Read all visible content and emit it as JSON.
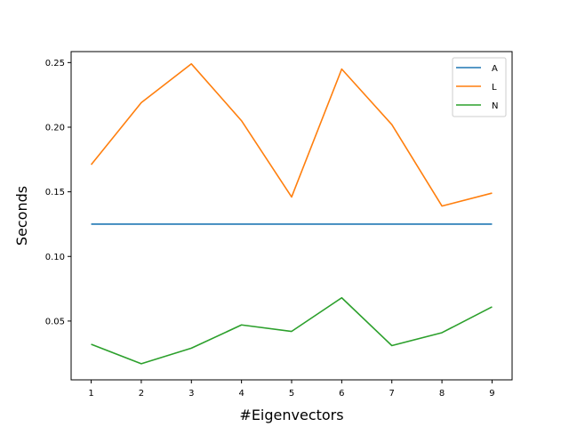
{
  "chart_data": {
    "type": "line",
    "title": "",
    "xlabel": "#Eigenvectors",
    "ylabel": "Seconds",
    "x": [
      1,
      2,
      3,
      4,
      5,
      6,
      7,
      8,
      9
    ],
    "xlim": [
      0.6,
      9.4
    ],
    "ylim": [
      0.0045,
      0.2585
    ],
    "xticks": [
      "1",
      "2",
      "3",
      "4",
      "5",
      "6",
      "7",
      "8",
      "9"
    ],
    "yticks": [
      0.05,
      0.1,
      0.15,
      0.2,
      0.25
    ],
    "ytick_labels": [
      "0.05",
      "0.10",
      "0.15",
      "0.20",
      "0.25"
    ],
    "grid": false,
    "legend_position": "top-right",
    "series": [
      {
        "name": "A",
        "color": "#1f77b4",
        "values": [
          0.125,
          0.125,
          0.125,
          0.125,
          0.125,
          0.125,
          0.125,
          0.125,
          0.125
        ]
      },
      {
        "name": "L",
        "color": "#ff7f0e",
        "values": [
          0.171,
          0.219,
          0.249,
          0.205,
          0.146,
          0.245,
          0.202,
          0.139,
          0.149
        ]
      },
      {
        "name": "N",
        "color": "#2ca02c",
        "values": [
          0.032,
          0.017,
          0.029,
          0.047,
          0.042,
          0.068,
          0.031,
          0.041,
          0.061
        ]
      }
    ]
  }
}
